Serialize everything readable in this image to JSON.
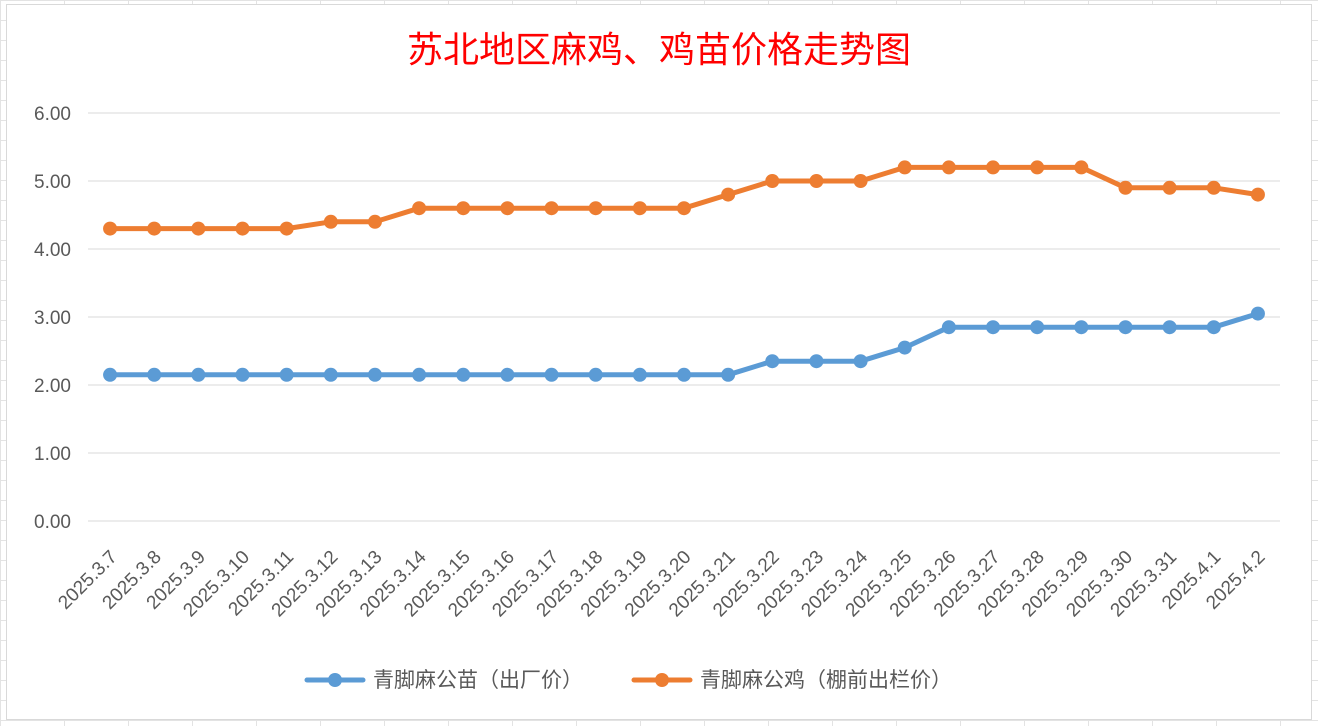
{
  "chart_data": {
    "type": "line",
    "title": "苏北地区麻鸡、鸡苗价格走势图",
    "categories": [
      "2025.3.7",
      "2025.3.8",
      "2025.3.9",
      "2025.3.10",
      "2025.3.11",
      "2025.3.12",
      "2025.3.13",
      "2025.3.14",
      "2025.3.15",
      "2025.3.16",
      "2025.3.17",
      "2025.3.18",
      "2025.3.19",
      "2025.3.20",
      "2025.3.21",
      "2025.3.22",
      "2025.3.23",
      "2025.3.24",
      "2025.3.25",
      "2025.3.26",
      "2025.3.27",
      "2025.3.28",
      "2025.3.29",
      "2025.3.30",
      "2025.3.31",
      "2025.4.1",
      "2025.4.2"
    ],
    "yticks": [
      "0.00",
      "1.00",
      "2.00",
      "3.00",
      "4.00",
      "5.00",
      "6.00"
    ],
    "ylim": [
      0,
      6
    ],
    "grid": true,
    "legend_position": "bottom",
    "series": [
      {
        "name": "青脚麻公苗（出厂价）",
        "color": "#5b9bd5",
        "values": [
          2.15,
          2.15,
          2.15,
          2.15,
          2.15,
          2.15,
          2.15,
          2.15,
          2.15,
          2.15,
          2.15,
          2.15,
          2.15,
          2.15,
          2.15,
          2.35,
          2.35,
          2.35,
          2.55,
          2.85,
          2.85,
          2.85,
          2.85,
          2.85,
          2.85,
          2.85,
          3.05
        ]
      },
      {
        "name": "青脚麻公鸡（棚前出栏价）",
        "color": "#ed7d31",
        "values": [
          4.3,
          4.3,
          4.3,
          4.3,
          4.3,
          4.4,
          4.4,
          4.6,
          4.6,
          4.6,
          4.6,
          4.6,
          4.6,
          4.6,
          4.8,
          5.0,
          5.0,
          5.0,
          5.2,
          5.2,
          5.2,
          5.2,
          5.2,
          4.9,
          4.9,
          4.9,
          4.8
        ]
      }
    ]
  }
}
